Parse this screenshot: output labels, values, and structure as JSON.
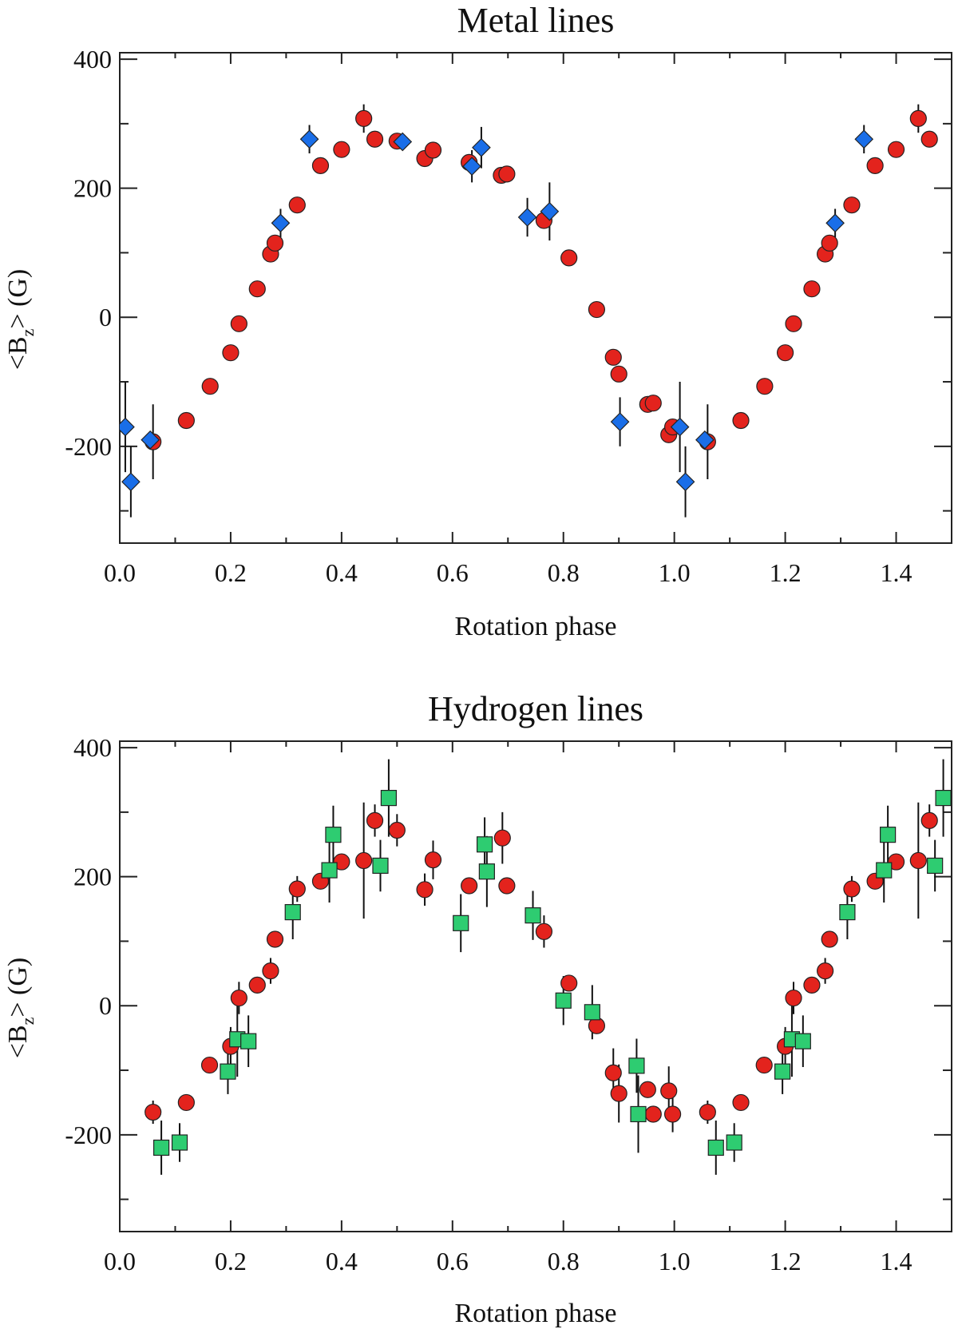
{
  "chart_data": [
    {
      "type": "scatter",
      "title": "Metal lines",
      "xlabel": "Rotation phase",
      "ylabel": "<B_z> (G)",
      "ylabel_main": "<B",
      "ylabel_sub": "z",
      "ylabel_tail": "> (G)",
      "xlim": [
        0.0,
        1.5
      ],
      "ylim": [
        -350,
        410
      ],
      "xticks": [
        0.0,
        0.2,
        0.4,
        0.6,
        0.8,
        1.0,
        1.2,
        1.4
      ],
      "xtick_labels": [
        "0.0",
        "0.2",
        "0.4",
        "0.6",
        "0.8",
        "1.0",
        "1.2",
        "1.4"
      ],
      "yticks": [
        -200,
        0,
        200,
        400
      ],
      "ytick_labels": [
        "-200",
        "0",
        "200",
        "400"
      ],
      "grid": false,
      "series": [
        {
          "name": "circles",
          "marker": "circle",
          "color": "#e3231d",
          "points": [
            {
              "x": 0.06,
              "y": -193,
              "err": 58
            },
            {
              "x": 0.12,
              "y": -160,
              "err": 0
            },
            {
              "x": 0.163,
              "y": -107,
              "err": 0
            },
            {
              "x": 0.2,
              "y": -55,
              "err": 0
            },
            {
              "x": 0.215,
              "y": -10,
              "err": 0
            },
            {
              "x": 0.248,
              "y": 44,
              "err": 0
            },
            {
              "x": 0.272,
              "y": 98,
              "err": 0
            },
            {
              "x": 0.28,
              "y": 115,
              "err": 0
            },
            {
              "x": 0.32,
              "y": 174,
              "err": 0
            },
            {
              "x": 0.362,
              "y": 235,
              "err": 0
            },
            {
              "x": 0.4,
              "y": 260,
              "err": 0
            },
            {
              "x": 0.44,
              "y": 308,
              "err": 22
            },
            {
              "x": 0.46,
              "y": 276,
              "err": 0
            },
            {
              "x": 0.5,
              "y": 273,
              "err": 0
            },
            {
              "x": 0.55,
              "y": 246,
              "err": 0
            },
            {
              "x": 0.565,
              "y": 259,
              "err": 0
            },
            {
              "x": 0.63,
              "y": 240,
              "err": 0
            },
            {
              "x": 0.688,
              "y": 220,
              "err": 0
            },
            {
              "x": 0.698,
              "y": 222,
              "err": 0
            },
            {
              "x": 0.765,
              "y": 150,
              "err": 0
            },
            {
              "x": 0.81,
              "y": 92,
              "err": 0
            },
            {
              "x": 0.86,
              "y": 12,
              "err": 0
            },
            {
              "x": 0.89,
              "y": -62,
              "err": 0
            },
            {
              "x": 0.9,
              "y": -88,
              "err": 0
            },
            {
              "x": 0.952,
              "y": -135,
              "err": 0
            },
            {
              "x": 0.962,
              "y": -133,
              "err": 0
            },
            {
              "x": 0.99,
              "y": -182,
              "err": 0
            },
            {
              "x": 0.997,
              "y": -170,
              "err": 0
            },
            {
              "x": 1.06,
              "y": -193,
              "err": 58
            },
            {
              "x": 1.12,
              "y": -160,
              "err": 0
            },
            {
              "x": 1.163,
              "y": -107,
              "err": 0
            },
            {
              "x": 1.2,
              "y": -55,
              "err": 0
            },
            {
              "x": 1.215,
              "y": -10,
              "err": 0
            },
            {
              "x": 1.248,
              "y": 44,
              "err": 0
            },
            {
              "x": 1.272,
              "y": 98,
              "err": 0
            },
            {
              "x": 1.28,
              "y": 115,
              "err": 0
            },
            {
              "x": 1.32,
              "y": 174,
              "err": 0
            },
            {
              "x": 1.362,
              "y": 235,
              "err": 0
            },
            {
              "x": 1.4,
              "y": 260,
              "err": 0
            },
            {
              "x": 1.44,
              "y": 308,
              "err": 22
            },
            {
              "x": 1.46,
              "y": 276,
              "err": 0
            }
          ]
        },
        {
          "name": "diamonds",
          "marker": "diamond",
          "color": "#1a6ee8",
          "points": [
            {
              "x": 0.01,
              "y": -170,
              "err": 70
            },
            {
              "x": 0.02,
              "y": -255,
              "err": 55
            },
            {
              "x": 0.055,
              "y": -190,
              "err": 0
            },
            {
              "x": 0.29,
              "y": 146,
              "err": 22
            },
            {
              "x": 0.342,
              "y": 276,
              "err": 22
            },
            {
              "x": 0.51,
              "y": 272,
              "err": 0
            },
            {
              "x": 0.635,
              "y": 234,
              "err": 25
            },
            {
              "x": 0.652,
              "y": 263,
              "err": 32
            },
            {
              "x": 0.735,
              "y": 155,
              "err": 30
            },
            {
              "x": 0.775,
              "y": 164,
              "err": 45
            },
            {
              "x": 0.902,
              "y": -162,
              "err": 38
            },
            {
              "x": 1.01,
              "y": -170,
              "err": 70
            },
            {
              "x": 1.02,
              "y": -255,
              "err": 55
            },
            {
              "x": 1.055,
              "y": -190,
              "err": 0
            },
            {
              "x": 1.29,
              "y": 146,
              "err": 22
            },
            {
              "x": 1.342,
              "y": 276,
              "err": 22
            }
          ]
        }
      ]
    },
    {
      "type": "scatter",
      "title": "Hydrogen lines",
      "xlabel": "Rotation phase",
      "ylabel": "<B_z> (G)",
      "ylabel_main": "<B",
      "ylabel_sub": "z",
      "ylabel_tail": "> (G)",
      "xlim": [
        0.0,
        1.5
      ],
      "ylim": [
        -350,
        410
      ],
      "xticks": [
        0.0,
        0.2,
        0.4,
        0.6,
        0.8,
        1.0,
        1.2,
        1.4
      ],
      "xtick_labels": [
        "0.0",
        "0.2",
        "0.4",
        "0.6",
        "0.8",
        "1.0",
        "1.2",
        "1.4"
      ],
      "yticks": [
        -200,
        0,
        200,
        400
      ],
      "ytick_labels": [
        "-200",
        "0",
        "200",
        "400"
      ],
      "grid": false,
      "series": [
        {
          "name": "circles",
          "marker": "circle",
          "color": "#e3231d",
          "points": [
            {
              "x": 0.06,
              "y": -165,
              "err": 18
            },
            {
              "x": 0.12,
              "y": -150,
              "err": 0
            },
            {
              "x": 0.162,
              "y": -92,
              "err": 0
            },
            {
              "x": 0.2,
              "y": -63,
              "err": 30
            },
            {
              "x": 0.215,
              "y": 12,
              "err": 25
            },
            {
              "x": 0.248,
              "y": 32,
              "err": 0
            },
            {
              "x": 0.272,
              "y": 54,
              "err": 20
            },
            {
              "x": 0.28,
              "y": 103,
              "err": 0
            },
            {
              "x": 0.32,
              "y": 181,
              "err": 20
            },
            {
              "x": 0.362,
              "y": 193,
              "err": 0
            },
            {
              "x": 0.4,
              "y": 223,
              "err": 0
            },
            {
              "x": 0.44,
              "y": 225,
              "err": 90
            },
            {
              "x": 0.46,
              "y": 287,
              "err": 25
            },
            {
              "x": 0.5,
              "y": 272,
              "err": 25
            },
            {
              "x": 0.55,
              "y": 180,
              "err": 25
            },
            {
              "x": 0.565,
              "y": 226,
              "err": 30
            },
            {
              "x": 0.63,
              "y": 186,
              "err": 0
            },
            {
              "x": 0.69,
              "y": 260,
              "err": 40
            },
            {
              "x": 0.698,
              "y": 186,
              "err": 0
            },
            {
              "x": 0.765,
              "y": 115,
              "err": 25
            },
            {
              "x": 0.81,
              "y": 35,
              "err": 0
            },
            {
              "x": 0.86,
              "y": -31,
              "err": 0
            },
            {
              "x": 0.89,
              "y": -104,
              "err": 38
            },
            {
              "x": 0.9,
              "y": -136,
              "err": 45
            },
            {
              "x": 0.952,
              "y": -130,
              "err": 0
            },
            {
              "x": 0.962,
              "y": -168,
              "err": 0
            },
            {
              "x": 0.99,
              "y": -132,
              "err": 38
            },
            {
              "x": 0.997,
              "y": -168,
              "err": 28
            },
            {
              "x": 1.06,
              "y": -165,
              "err": 18
            },
            {
              "x": 1.12,
              "y": -150,
              "err": 0
            },
            {
              "x": 1.162,
              "y": -92,
              "err": 0
            },
            {
              "x": 1.2,
              "y": -63,
              "err": 30
            },
            {
              "x": 1.215,
              "y": 12,
              "err": 25
            },
            {
              "x": 1.248,
              "y": 32,
              "err": 0
            },
            {
              "x": 1.272,
              "y": 54,
              "err": 20
            },
            {
              "x": 1.28,
              "y": 103,
              "err": 0
            },
            {
              "x": 1.32,
              "y": 181,
              "err": 20
            },
            {
              "x": 1.362,
              "y": 193,
              "err": 0
            },
            {
              "x": 1.4,
              "y": 223,
              "err": 0
            },
            {
              "x": 1.44,
              "y": 225,
              "err": 90
            },
            {
              "x": 1.46,
              "y": 287,
              "err": 25
            }
          ]
        },
        {
          "name": "squares",
          "marker": "square",
          "color": "#2ecc71",
          "points": [
            {
              "x": 0.075,
              "y": -220,
              "err": 42
            },
            {
              "x": 0.108,
              "y": -212,
              "err": 30
            },
            {
              "x": 0.195,
              "y": -102,
              "err": 35
            },
            {
              "x": 0.212,
              "y": -52,
              "err": 58
            },
            {
              "x": 0.232,
              "y": -55,
              "err": 40
            },
            {
              "x": 0.312,
              "y": 145,
              "err": 42
            },
            {
              "x": 0.378,
              "y": 210,
              "err": 50
            },
            {
              "x": 0.385,
              "y": 265,
              "err": 45
            },
            {
              "x": 0.47,
              "y": 217,
              "err": 40
            },
            {
              "x": 0.485,
              "y": 322,
              "err": 60
            },
            {
              "x": 0.615,
              "y": 128,
              "err": 45
            },
            {
              "x": 0.658,
              "y": 250,
              "err": 42
            },
            {
              "x": 0.662,
              "y": 208,
              "err": 55
            },
            {
              "x": 0.745,
              "y": 140,
              "err": 38
            },
            {
              "x": 0.8,
              "y": 8,
              "err": 38
            },
            {
              "x": 0.852,
              "y": -10,
              "err": 42
            },
            {
              "x": 0.932,
              "y": -93,
              "err": 42
            },
            {
              "x": 0.935,
              "y": -168,
              "err": 60
            },
            {
              "x": 1.075,
              "y": -220,
              "err": 42
            },
            {
              "x": 1.108,
              "y": -212,
              "err": 30
            },
            {
              "x": 1.195,
              "y": -102,
              "err": 35
            },
            {
              "x": 1.212,
              "y": -52,
              "err": 58
            },
            {
              "x": 1.232,
              "y": -55,
              "err": 40
            },
            {
              "x": 1.312,
              "y": 145,
              "err": 42
            },
            {
              "x": 1.378,
              "y": 210,
              "err": 50
            },
            {
              "x": 1.385,
              "y": 265,
              "err": 45
            },
            {
              "x": 1.47,
              "y": 217,
              "err": 40
            },
            {
              "x": 1.485,
              "y": 322,
              "err": 60
            }
          ]
        }
      ]
    }
  ]
}
